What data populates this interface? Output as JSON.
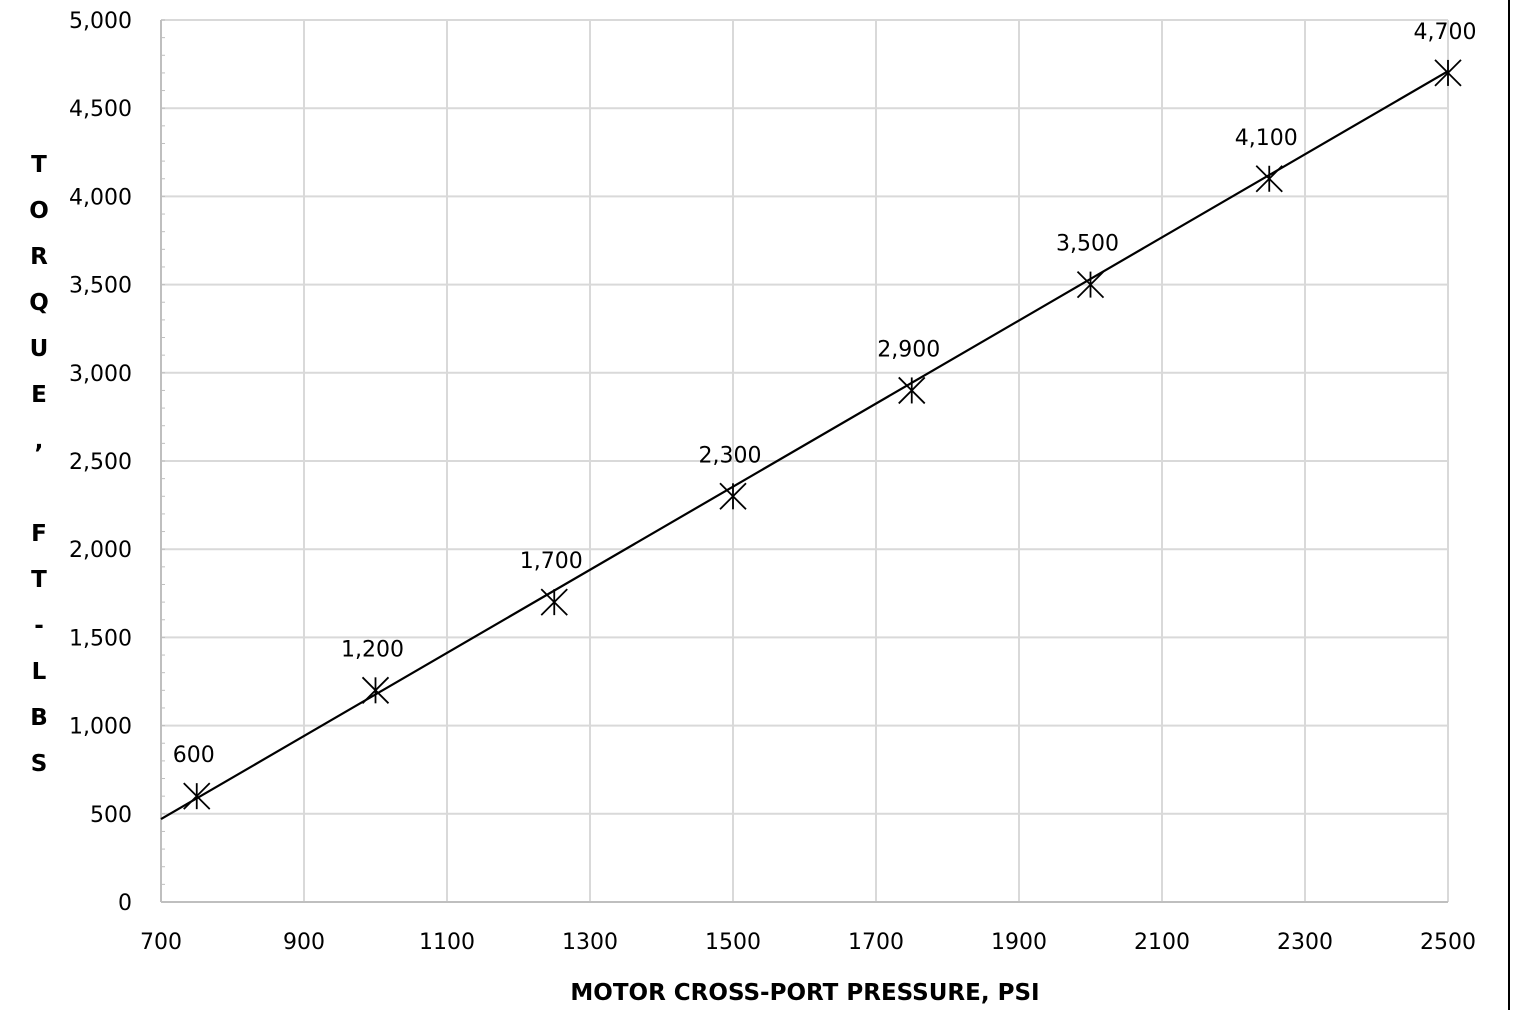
{
  "chart_data": {
    "type": "line",
    "title": "",
    "xlabel": "MOTOR CROSS-PORT PRESSURE,  PSI",
    "ylabel": "TORQUE, FT-LBS",
    "ylabel_letters": [
      "T",
      "O",
      "R",
      "Q",
      "U",
      "E",
      ",",
      "F",
      "T",
      "-",
      "L",
      "B",
      "S"
    ],
    "xlim": [
      700,
      2500
    ],
    "ylim": [
      0,
      5000
    ],
    "x_ticks": [
      700,
      900,
      1100,
      1300,
      1500,
      1700,
      1900,
      2100,
      2300,
      2500
    ],
    "x_tick_labels": [
      "700",
      "900",
      "1100",
      "1300",
      "1500",
      "1700",
      "1900",
      "2100",
      "2300",
      "2500"
    ],
    "y_ticks": [
      0,
      500,
      1000,
      1500,
      2000,
      2500,
      3000,
      3500,
      4000,
      4500,
      5000
    ],
    "y_tick_labels": [
      "0",
      "500",
      "1,000",
      "1,500",
      "2,000",
      "2,500",
      "3,000",
      "3,500",
      "4,000",
      "4,500",
      "5,000"
    ],
    "grid": true,
    "legend": "none",
    "series": [
      {
        "marker": "asterisk",
        "x": [
          750,
          1000,
          1250,
          1500,
          1750,
          2000,
          2250,
          2500
        ],
        "y": [
          600,
          1200,
          1700,
          2300,
          2900,
          3500,
          4100,
          4700
        ],
        "data_labels": [
          "600",
          "1,200",
          "1,700",
          "2,300",
          "2,900",
          "3,500",
          "4,100",
          "4,700"
        ]
      }
    ],
    "trendline": {
      "type": "linear",
      "x_from": 700,
      "x_to": 2500,
      "y_from": 470,
      "y_to": 4710
    }
  }
}
